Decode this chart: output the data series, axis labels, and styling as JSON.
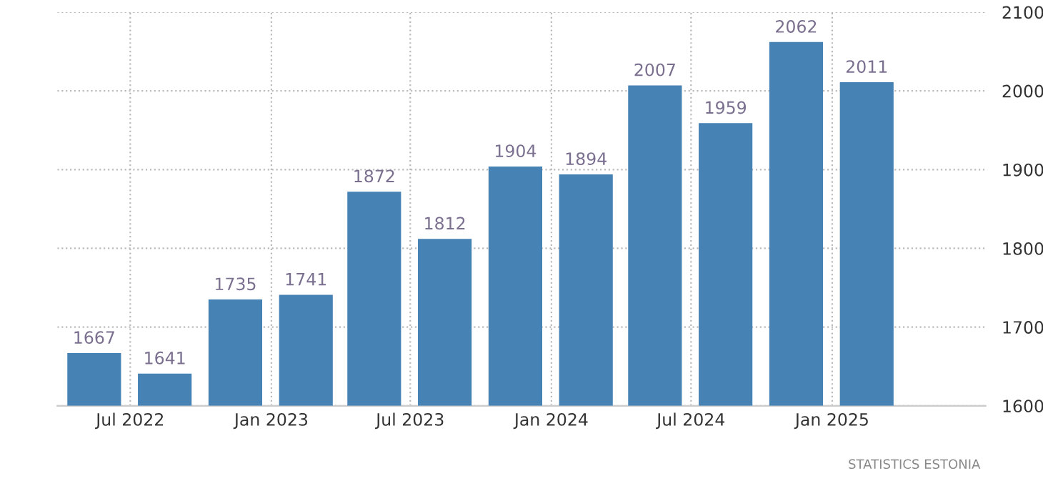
{
  "chart_data": {
    "type": "bar",
    "x": [
      "2022-05-15",
      "2022-08-15",
      "2022-11-15",
      "2023-02-15",
      "2023-05-15",
      "2023-08-15",
      "2023-11-15",
      "2024-02-15",
      "2024-05-15",
      "2024-08-15",
      "2024-11-15",
      "2025-02-15"
    ],
    "values": [
      1667,
      1641,
      1735,
      1741,
      1872,
      1812,
      1904,
      1894,
      2007,
      1959,
      2062,
      2011
    ],
    "color": "#4682b4",
    "data_labels": true,
    "ylim": [
      1600,
      2100
    ],
    "yticks": [
      1600,
      1700,
      1800,
      1900,
      2000,
      2100
    ],
    "xlim": [
      "2022-03-28",
      "2025-07-20"
    ],
    "xticks": [
      {
        "value": "2022-07-01",
        "label": "Jul 2022"
      },
      {
        "value": "2023-01-01",
        "label": "Jan 2023"
      },
      {
        "value": "2023-07-01",
        "label": "Jul 2023"
      },
      {
        "value": "2024-01-01",
        "label": "Jan 2024"
      },
      {
        "value": "2024-07-01",
        "label": "Jul 2024"
      },
      {
        "value": "2025-01-01",
        "label": "Jan 2025"
      }
    ],
    "grid": true,
    "annotations": [
      "STATISTICS ESTONIA"
    ]
  }
}
